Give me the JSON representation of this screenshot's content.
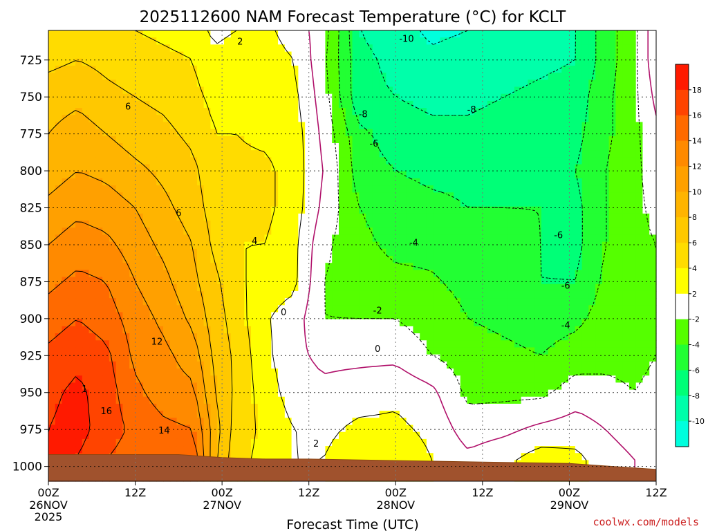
{
  "chart_data": {
    "type": "heatmap",
    "title": "2025112600 NAM Forecast Temperature (°C) for KCLT",
    "xlabel": "Forecast Time (UTC)",
    "ylabel": "",
    "x_hours": [
      0,
      12,
      24,
      36,
      48,
      60,
      72,
      84
    ],
    "x_tick_labels": [
      {
        "top": "00Z",
        "date": "26NOV",
        "year": "2025"
      },
      {
        "top": "12Z",
        "date": "",
        "year": ""
      },
      {
        "top": "00Z",
        "date": "27NOV",
        "year": ""
      },
      {
        "top": "12Z",
        "date": "",
        "year": ""
      },
      {
        "top": "00Z",
        "date": "28NOV",
        "year": ""
      },
      {
        "top": "12Z",
        "date": "",
        "year": ""
      },
      {
        "top": "00Z",
        "date": "29NOV",
        "year": ""
      },
      {
        "top": "12Z",
        "date": "",
        "year": ""
      }
    ],
    "xlim": [
      0,
      84
    ],
    "y_pressure_levels": [
      725,
      750,
      775,
      800,
      825,
      850,
      875,
      900,
      925,
      950,
      975,
      1000
    ],
    "ylim": [
      705,
      1010
    ],
    "y_inverted": true,
    "grid": true,
    "colorbar": {
      "placement": "right",
      "ticks": [
        18,
        16,
        14,
        12,
        10,
        8,
        6,
        4,
        2,
        -2,
        -4,
        -6,
        -8,
        -10
      ],
      "bins": [
        {
          "max": 20,
          "color": "#ff1a00"
        },
        {
          "max": 18,
          "color": "#ff4400"
        },
        {
          "max": 16,
          "color": "#ff6a00"
        },
        {
          "max": 14,
          "color": "#ff8a00"
        },
        {
          "max": 12,
          "color": "#ffa000"
        },
        {
          "max": 10,
          "color": "#ffb400"
        },
        {
          "max": 8,
          "color": "#ffc800"
        },
        {
          "max": 6,
          "color": "#ffdc00"
        },
        {
          "max": 4,
          "color": "#ffff00"
        },
        {
          "max": 2,
          "color": "#ffffff"
        },
        {
          "max": -2,
          "color": "#55ff00"
        },
        {
          "max": -4,
          "color": "#22ff33"
        },
        {
          "max": -6,
          "color": "#00ff77"
        },
        {
          "max": -8,
          "color": "#00ffaa"
        },
        {
          "max": -10,
          "color": "#00ffdd"
        }
      ]
    },
    "series": [
      {
        "name": "Temperature",
        "units": "°C"
      }
    ],
    "control_points": [
      {
        "hour": 0,
        "p": [
          705,
          725,
          750,
          775,
          800,
          825,
          850,
          875,
          900,
          925,
          950,
          975,
          995
        ],
        "t": [
          4.5,
          5.5,
          7,
          8,
          9,
          10.5,
          12,
          13.5,
          15,
          16.5,
          17.5,
          18,
          18
        ]
      },
      {
        "hour": 4,
        "p": [
          705,
          725,
          750,
          775,
          800,
          825,
          850,
          875,
          900,
          925,
          950,
          975,
          995
        ],
        "t": [
          5,
          6,
          7.5,
          9,
          10,
          11.5,
          13,
          14.5,
          16,
          17.5,
          18.5,
          18.8,
          18
        ]
      },
      {
        "hour": 8,
        "p": [
          705,
          725,
          750,
          775,
          800,
          825,
          850,
          875,
          900,
          925,
          950,
          975,
          995
        ],
        "t": [
          4.5,
          5.5,
          6.5,
          8,
          9.5,
          11,
          12.5,
          14,
          15,
          16.5,
          17,
          17,
          16
        ]
      },
      {
        "hour": 12,
        "p": [
          705,
          725,
          750,
          775,
          800,
          825,
          850,
          875,
          900,
          925,
          950,
          975,
          995
        ],
        "t": [
          4,
          5,
          6,
          7,
          8.5,
          10,
          11,
          12,
          13,
          13.5,
          14.5,
          15.5,
          15
        ]
      },
      {
        "hour": 16,
        "p": [
          705,
          725,
          750,
          775,
          800,
          825,
          850,
          875,
          900,
          925,
          950,
          975,
          995
        ],
        "t": [
          3.5,
          4.5,
          5.5,
          6.5,
          7.5,
          8.5,
          9.5,
          10.5,
          11.5,
          12.5,
          13,
          14.5,
          14.5
        ]
      },
      {
        "hour": 20,
        "p": [
          705,
          725,
          750,
          775,
          800,
          825,
          850,
          875,
          900,
          925,
          950,
          975,
          995
        ],
        "t": [
          3,
          4,
          4.5,
          5.5,
          6.5,
          7,
          8,
          8.5,
          9.5,
          11,
          12.5,
          14,
          15.5
        ]
      },
      {
        "hour": 23,
        "p": [
          705,
          725,
          750,
          775,
          800,
          825,
          850,
          875,
          900,
          925,
          950,
          975,
          995
        ],
        "t": [
          1.5,
          2.5,
          3.5,
          4,
          4.5,
          5,
          5.5,
          6.5,
          7,
          7.5,
          8,
          9,
          8.5
        ]
      },
      {
        "hour": 26,
        "p": [
          705,
          725,
          750,
          775,
          800,
          825,
          850,
          875,
          900,
          925,
          950,
          975,
          995
        ],
        "t": [
          2,
          3,
          3.5,
          4,
          4.5,
          4.5,
          4,
          4.5,
          5,
          5.5,
          5.5,
          5,
          4.5
        ]
      },
      {
        "hour": 30,
        "p": [
          705,
          725,
          750,
          775,
          800,
          825,
          850,
          875,
          900,
          925,
          950,
          975,
          995
        ],
        "t": [
          2.5,
          3,
          3,
          3.5,
          4.5,
          4.5,
          4,
          3,
          2.2,
          2.5,
          3,
          3.5,
          3.5
        ]
      },
      {
        "hour": 34,
        "p": [
          705,
          725,
          750,
          775,
          800,
          825,
          850,
          875,
          900,
          925,
          950,
          975,
          995
        ],
        "t": [
          1,
          2,
          2.5,
          3,
          3,
          3,
          2.5,
          2.5,
          1,
          0.5,
          1,
          2,
          2
        ]
      },
      {
        "hour": 38,
        "p": [
          705,
          725,
          750,
          775,
          800,
          825,
          850,
          875,
          900,
          925,
          950,
          975,
          995
        ],
        "t": [
          -1,
          -1.5,
          -1,
          -0.5,
          0,
          -0.5,
          -1.5,
          -2,
          -2,
          -0.5,
          0.5,
          1.5,
          2
        ]
      },
      {
        "hour": 43,
        "p": [
          705,
          725,
          750,
          775,
          800,
          825,
          850,
          875,
          900,
          925,
          950,
          975,
          995
        ],
        "t": [
          -8,
          -7.5,
          -7.5,
          -5.5,
          -5,
          -4,
          -3.5,
          -3,
          -2,
          -0.5,
          1,
          2.5,
          3.5
        ]
      },
      {
        "hour": 48,
        "p": [
          705,
          725,
          750,
          775,
          800,
          825,
          850,
          875,
          900,
          925,
          950,
          975,
          995
        ],
        "t": [
          -9,
          -8.5,
          -8,
          -7,
          -6,
          -5,
          -4.5,
          -3.5,
          -2,
          -0.5,
          1.5,
          2.5,
          3.5
        ]
      },
      {
        "hour": 53,
        "p": [
          705,
          725,
          750,
          775,
          800,
          825,
          850,
          875,
          900,
          925,
          950,
          975,
          995
        ],
        "t": [
          -10.5,
          -9.5,
          -8.5,
          -7.5,
          -6.5,
          -5.5,
          -4.5,
          -3.8,
          -3,
          -2,
          0.5,
          1.5,
          2
        ]
      },
      {
        "hour": 58,
        "p": [
          705,
          725,
          750,
          775,
          800,
          825,
          850,
          875,
          900,
          925,
          950,
          975,
          995
        ],
        "t": [
          -10,
          -9,
          -8.5,
          -7.5,
          -6.5,
          -6,
          -5,
          -4.5,
          -4,
          -3,
          -2.5,
          -1,
          0.5
        ]
      },
      {
        "hour": 63,
        "p": [
          705,
          725,
          750,
          775,
          800,
          825,
          850,
          875,
          900,
          925,
          950,
          975,
          995
        ],
        "t": [
          -9.5,
          -9,
          -8,
          -7,
          -6.5,
          -6,
          -5.5,
          -5,
          -4.5,
          -3.5,
          -2.5,
          -0.5,
          1.5
        ]
      },
      {
        "hour": 68,
        "p": [
          705,
          725,
          750,
          775,
          800,
          825,
          850,
          875,
          900,
          925,
          950,
          975,
          995
        ],
        "t": [
          -9,
          -8.5,
          -7.5,
          -7,
          -6.5,
          -6,
          -6,
          -6,
          -5,
          -4,
          -2.5,
          0.5,
          3
        ]
      },
      {
        "hour": 73,
        "p": [
          705,
          725,
          750,
          775,
          800,
          825,
          850,
          875,
          900,
          925,
          950,
          975,
          995
        ],
        "t": [
          -8,
          -8,
          -7,
          -6.5,
          -6,
          -6.5,
          -6.5,
          -6,
          -4.5,
          -3,
          -1,
          1,
          2.5
        ]
      },
      {
        "hour": 77,
        "p": [
          705,
          725,
          750,
          775,
          800,
          825,
          850,
          875,
          900,
          925,
          950,
          975,
          995
        ],
        "t": [
          -5,
          -5,
          -4.5,
          -4.5,
          -4,
          -4,
          -4,
          -3.5,
          -3,
          -2.5,
          -1.5,
          0,
          1
        ]
      },
      {
        "hour": 81,
        "p": [
          705,
          725,
          750,
          775,
          800,
          825,
          850,
          875,
          900,
          925,
          950,
          975,
          995
        ],
        "t": [
          -2.5,
          -2.5,
          -2.5,
          -2.5,
          -2.5,
          -2.5,
          -2.5,
          -2.5,
          -2.5,
          -2.5,
          -2,
          -1,
          0
        ]
      },
      {
        "hour": 84,
        "p": [
          705,
          725,
          750,
          775,
          800,
          825,
          850,
          875,
          900,
          925,
          950,
          975,
          995
        ],
        "t": [
          1.5,
          1.5,
          0.5,
          -0.5,
          -1,
          -1.5,
          -2,
          -2,
          -2,
          -2,
          -1.5,
          -0.5,
          -0.5
        ]
      }
    ],
    "contour_labels": [
      {
        "text": "2",
        "hour": 26.5,
        "p": 713
      },
      {
        "text": "-10",
        "hour": 49.5,
        "p": 711
      },
      {
        "text": "6",
        "hour": 11,
        "p": 757
      },
      {
        "text": "-8",
        "hour": 43.5,
        "p": 762
      },
      {
        "text": "-8",
        "hour": 58.5,
        "p": 759
      },
      {
        "text": "-6",
        "hour": 45,
        "p": 782
      },
      {
        "text": "6",
        "hour": 18,
        "p": 829
      },
      {
        "text": "-6",
        "hour": 70.5,
        "p": 844
      },
      {
        "text": "4",
        "hour": 28.5,
        "p": 848
      },
      {
        "text": "-4",
        "hour": 50.5,
        "p": 849
      },
      {
        "text": "-6",
        "hour": 71.5,
        "p": 878
      },
      {
        "text": "0",
        "hour": 32.5,
        "p": 896
      },
      {
        "text": "-2",
        "hour": 45.5,
        "p": 895
      },
      {
        "text": "-4",
        "hour": 71.5,
        "p": 905
      },
      {
        "text": "12",
        "hour": 15,
        "p": 916
      },
      {
        "text": "0",
        "hour": 45.5,
        "p": 921
      },
      {
        "text": "1",
        "hour": 5,
        "p": 948
      },
      {
        "text": "16",
        "hour": 8,
        "p": 963
      },
      {
        "text": "14",
        "hour": 16,
        "p": 976
      },
      {
        "text": "2",
        "hour": 37,
        "p": 985
      }
    ],
    "surface_pressure": {
      "hours": [
        0,
        12,
        18,
        24,
        30,
        36,
        48,
        60,
        72,
        84
      ],
      "p": [
        992,
        992,
        992,
        994,
        995,
        995,
        996,
        997,
        998,
        1002
      ]
    },
    "credit": "coolwx.com/models"
  }
}
